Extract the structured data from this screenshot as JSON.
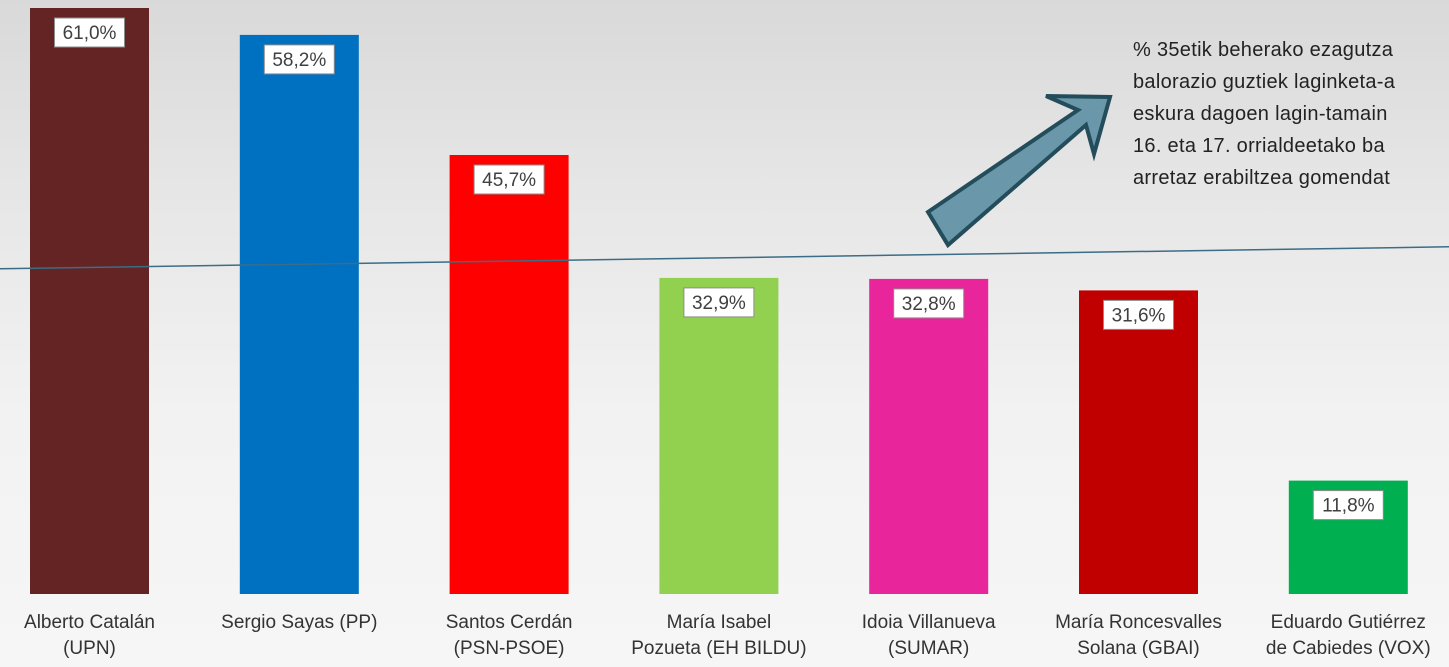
{
  "chart_data": {
    "type": "bar",
    "categories": [
      [
        "Alberto Catalán",
        "(UPN)"
      ],
      [
        "Sergio Sayas  (PP)"
      ],
      [
        "Santos Cerdán",
        "(PSN-PSOE)"
      ],
      [
        "María Isabel",
        "Pozueta  (EH BILDU)"
      ],
      [
        "Idoia Villanueva",
        "(SUMAR)"
      ],
      [
        "María Roncesvalles",
        "Solana  (GBAI)"
      ],
      [
        "Eduardo Gutiérrez",
        "de Cabiedes (VOX)"
      ]
    ],
    "values": [
      61.0,
      58.2,
      45.7,
      32.9,
      32.8,
      31.6,
      11.8
    ],
    "data_labels": [
      "61,0%",
      "58,2%",
      "45,7%",
      "32,9%",
      "32,8%",
      "31,6%",
      "11,8%"
    ],
    "colors": [
      "#632423",
      "#0070c0",
      "#ff0000",
      "#92d050",
      "#e8259a",
      "#c00000",
      "#00b050"
    ],
    "reference_line": 35,
    "ylim": [
      0,
      61.0
    ],
    "grid": false,
    "title": "",
    "xlabel": "",
    "ylabel": ""
  },
  "annotation": {
    "lines": [
      "% 35etik beherako ezagutza",
      "balorazio guztiek laginketa-a",
      "eskura dagoen lagin-tamain",
      "16. eta 17. orrialdeetako ba",
      "arretaz erabiltzea gomendat"
    ],
    "arrow_color": "#6a97aa"
  }
}
